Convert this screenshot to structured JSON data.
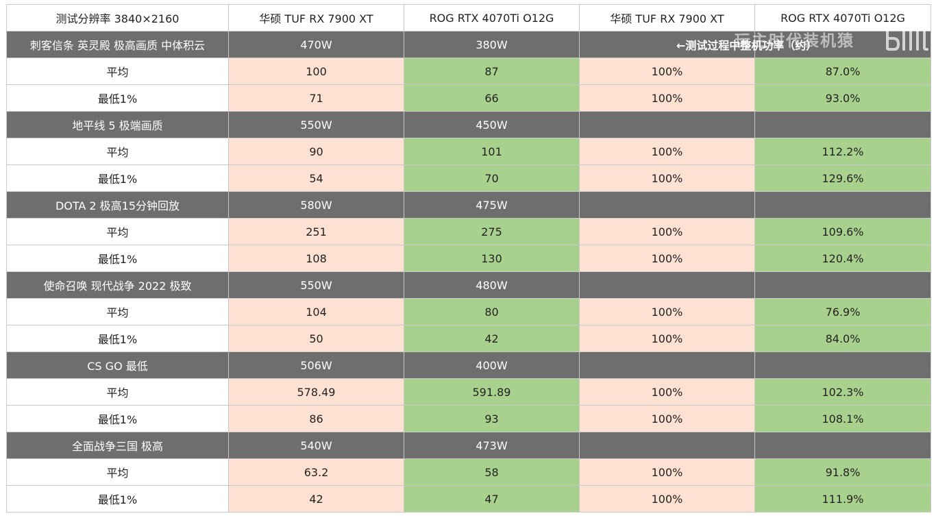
{
  "header": {
    "col0": "测试分辨率 3840×2160",
    "col1": "华硕 TUF RX 7900 XT",
    "col2": "ROG RTX 4070Ti O12G",
    "col3": "华硕 TUF RX 7900 XT",
    "col4": "ROG RTX 4070Ti O12G"
  },
  "power_note": "←测试过程中整机功率（约）",
  "watermark_text": "玩主时代装机猿",
  "logo_icon": "bilibili-logo-icon",
  "colors": {
    "section_bg": "#6e6e6e",
    "amd_cell_bg": "#fde1d3",
    "nvidia_cell_bg": "#a9d18e"
  },
  "games": [
    {
      "name": "刺客信条 英灵殿 极高画质 中体积云",
      "power_a": "470W",
      "power_b": "380W",
      "rows": [
        {
          "label": "平均",
          "a": "100",
          "b": "87",
          "pa": "100%",
          "pb": "87.0%"
        },
        {
          "label": "最低1%",
          "a": "71",
          "b": "66",
          "pa": "100%",
          "pb": "93.0%"
        }
      ]
    },
    {
      "name": "地平线 5 极端画质",
      "power_a": "550W",
      "power_b": "450W",
      "rows": [
        {
          "label": "平均",
          "a": "90",
          "b": "101",
          "pa": "100%",
          "pb": "112.2%"
        },
        {
          "label": "最低1%",
          "a": "54",
          "b": "70",
          "pa": "100%",
          "pb": "129.6%"
        }
      ]
    },
    {
      "name": "DOTA 2 极高15分钟回放",
      "power_a": "580W",
      "power_b": "475W",
      "rows": [
        {
          "label": "平均",
          "a": "251",
          "b": "275",
          "pa": "100%",
          "pb": "109.6%"
        },
        {
          "label": "最低1%",
          "a": "108",
          "b": "130",
          "pa": "100%",
          "pb": "120.4%"
        }
      ]
    },
    {
      "name": "使命召唤 现代战争 2022 极致",
      "power_a": "550W",
      "power_b": "480W",
      "rows": [
        {
          "label": "平均",
          "a": "104",
          "b": "80",
          "pa": "100%",
          "pb": "76.9%"
        },
        {
          "label": "最低1%",
          "a": "50",
          "b": "42",
          "pa": "100%",
          "pb": "84.0%"
        }
      ]
    },
    {
      "name": "CS GO 最低",
      "power_a": "506W",
      "power_b": "400W",
      "rows": [
        {
          "label": "平均",
          "a": "578.49",
          "b": "591.89",
          "pa": "100%",
          "pb": "102.3%"
        },
        {
          "label": "最低1%",
          "a": "86",
          "b": "93",
          "pa": "100%",
          "pb": "108.1%"
        }
      ]
    },
    {
      "name": "全面战争三国 极高",
      "power_a": "540W",
      "power_b": "473W",
      "rows": [
        {
          "label": "平均",
          "a": "63.2",
          "b": "58",
          "pa": "100%",
          "pb": "91.8%"
        },
        {
          "label": "最低1%",
          "a": "42",
          "b": "47",
          "pa": "100%",
          "pb": "111.9%"
        }
      ]
    }
  ]
}
